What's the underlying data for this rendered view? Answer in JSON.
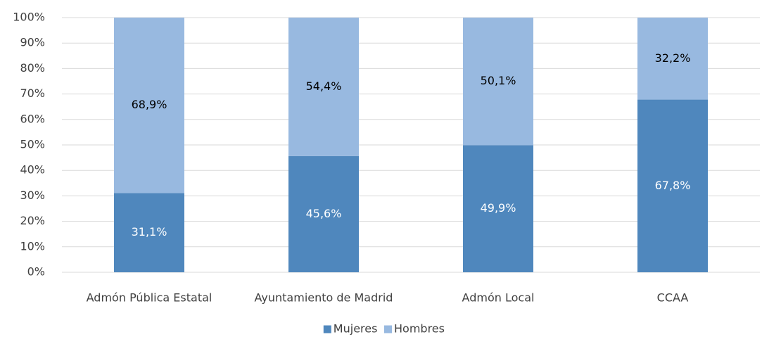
{
  "chart_data": {
    "type": "stacked_bar",
    "categories": [
      "Admón Pública Estatal",
      "Ayuntamiento de Madrid",
      "Admón Local",
      "CCAA"
    ],
    "series": [
      {
        "name": "Mujeres",
        "color": "#4f87bd",
        "label_color": "#ffffff",
        "values": [
          31.1,
          45.6,
          49.9,
          67.8
        ],
        "value_labels": [
          "31,1%",
          "45,6%",
          "49,9%",
          "67,8%"
        ]
      },
      {
        "name": "Hombres",
        "color": "#98b9e0",
        "label_color": "#000000",
        "values": [
          68.9,
          54.4,
          50.1,
          32.2
        ],
        "value_labels": [
          "68,9%",
          "54,4%",
          "50,1%",
          "32,2%"
        ]
      }
    ],
    "ylim": [
      0,
      100
    ],
    "yticks": [
      {
        "value": 0,
        "label": "0%"
      },
      {
        "value": 10,
        "label": "10%"
      },
      {
        "value": 20,
        "label": "20%"
      },
      {
        "value": 30,
        "label": "30%"
      },
      {
        "value": 40,
        "label": "40%"
      },
      {
        "value": 50,
        "label": "50%"
      },
      {
        "value": 60,
        "label": "60%"
      },
      {
        "value": 70,
        "label": "70%"
      },
      {
        "value": 80,
        "label": "80%"
      },
      {
        "value": 90,
        "label": "90%"
      },
      {
        "value": 100,
        "label": "100%"
      }
    ],
    "grid": true,
    "legend": "bottom"
  }
}
